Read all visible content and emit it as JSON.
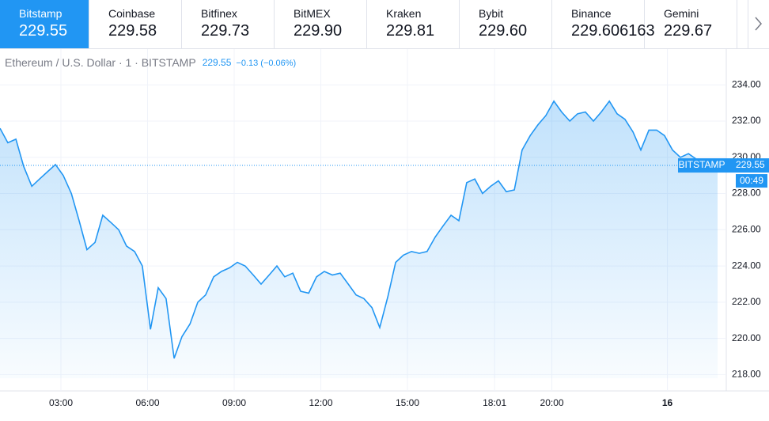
{
  "tabs": [
    {
      "name": "Bitstamp",
      "price": "229.55"
    },
    {
      "name": "Coinbase",
      "price": "229.58"
    },
    {
      "name": "Bitfinex",
      "price": "229.73"
    },
    {
      "name": "BitMEX",
      "price": "229.90"
    },
    {
      "name": "Kraken",
      "price": "229.81"
    },
    {
      "name": "Bybit",
      "price": "229.60"
    },
    {
      "name": "Binance",
      "price": "229.606163"
    },
    {
      "name": "Gemini",
      "price": "229.67"
    }
  ],
  "selected_tab": 0,
  "chart_data": {
    "type": "line",
    "title": "Ethereum / U.S. Dollar · 1 · BITSTAMP",
    "last_price": 229.55,
    "change": "−0.13 (−0.06%)",
    "last_label": "BITSTAMP",
    "countdown": "00:49",
    "x": [
      0.89,
      1.16,
      1.44,
      1.71,
      1.99,
      2.26,
      2.53,
      2.81,
      3.08,
      3.36,
      3.63,
      3.9,
      4.18,
      4.45,
      4.73,
      5.0,
      5.27,
      5.55,
      5.82,
      6.1,
      6.37,
      6.64,
      6.92,
      7.19,
      7.47,
      7.74,
      8.01,
      8.29,
      8.56,
      8.84,
      9.11,
      9.38,
      9.66,
      9.93,
      10.21,
      10.48,
      10.75,
      11.03,
      11.3,
      11.58,
      11.85,
      12.12,
      12.4,
      12.67,
      12.95,
      13.22,
      13.49,
      13.77,
      14.04,
      14.32,
      14.59,
      14.86,
      15.14,
      15.41,
      15.68,
      15.96,
      16.23,
      16.51,
      16.78,
      17.05,
      17.33,
      17.6,
      17.88,
      18.15,
      18.42,
      18.7,
      18.97,
      19.25,
      19.52,
      19.79,
      20.07,
      20.34,
      20.62,
      20.89,
      21.16,
      21.44,
      21.71,
      21.99,
      22.26,
      22.53,
      22.81,
      23.08,
      23.36,
      23.63,
      23.9,
      24.18,
      24.45,
      24.73,
      25.0,
      25.27,
      25.55,
      25.74
    ],
    "series": [
      {
        "name": "ETHUSD",
        "color": "#2196f3",
        "values": [
          231.6,
          230.8,
          231.0,
          229.5,
          228.4,
          228.8,
          229.2,
          229.6,
          229.0,
          228.0,
          226.5,
          224.9,
          225.3,
          226.8,
          226.4,
          226.0,
          225.1,
          224.8,
          224.0,
          220.5,
          222.8,
          222.2,
          218.9,
          220.1,
          220.8,
          222.0,
          222.4,
          223.4,
          223.7,
          223.9,
          224.2,
          224.0,
          223.5,
          223.0,
          223.5,
          224.0,
          223.4,
          223.6,
          222.6,
          222.5,
          223.4,
          223.7,
          223.5,
          223.6,
          223.0,
          222.4,
          222.2,
          221.7,
          220.6,
          222.3,
          224.2,
          224.6,
          224.8,
          224.7,
          224.8,
          225.6,
          226.2,
          226.8,
          226.5,
          228.6,
          228.8,
          228.0,
          228.4,
          228.7,
          228.1,
          228.2,
          230.4,
          231.2,
          231.8,
          232.3,
          233.1,
          232.5,
          232.0,
          232.4,
          232.5,
          232.0,
          232.5,
          233.1,
          232.4,
          232.1,
          231.4,
          230.4,
          231.5,
          231.5,
          231.2,
          230.4,
          230.0,
          230.2,
          229.9,
          229.8,
          229.3,
          229.55
        ]
      }
    ],
    "xlim": [
      0.89,
      26.04
    ],
    "ylim": [
      217.8,
      235.8
    ],
    "xticks": [
      {
        "value": 3,
        "label": "03:00"
      },
      {
        "value": 6,
        "label": "06:00"
      },
      {
        "value": 9,
        "label": "09:00"
      },
      {
        "value": 12,
        "label": "12:00"
      },
      {
        "value": 15,
        "label": "15:00"
      },
      {
        "value": 18.0167,
        "label": "18:01"
      },
      {
        "value": 20,
        "label": "20:00"
      },
      {
        "value": 24,
        "label": "16"
      }
    ],
    "yticks": [
      {
        "value": 218,
        "label": "218.00"
      },
      {
        "value": 220,
        "label": "220.00"
      },
      {
        "value": 222,
        "label": "222.00"
      },
      {
        "value": 224,
        "label": "224.00"
      },
      {
        "value": 226,
        "label": "226.00"
      },
      {
        "value": 228,
        "label": "228.00"
      },
      {
        "value": 230,
        "label": "230.00"
      },
      {
        "value": 232,
        "label": "232.00"
      },
      {
        "value": 234,
        "label": "234.00"
      }
    ],
    "grid": true
  }
}
